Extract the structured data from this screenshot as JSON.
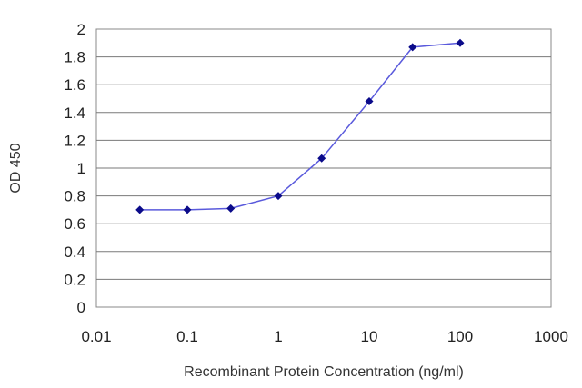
{
  "chart_data": {
    "type": "line",
    "title": "",
    "xlabel": "Recombinant Protein Concentration (ng/ml)",
    "ylabel": "OD 450",
    "x_scale": "log",
    "xlim": [
      0.01,
      1000
    ],
    "ylim": [
      0,
      2
    ],
    "x_ticks": [
      0.01,
      0.1,
      1,
      10,
      100,
      1000
    ],
    "x_tick_labels": [
      "0.01",
      "0.1",
      "1",
      "10",
      "100",
      "1000"
    ],
    "y_ticks": [
      0,
      0.2,
      0.4,
      0.6,
      0.8,
      1,
      1.2,
      1.4,
      1.6,
      1.8,
      2
    ],
    "y_tick_labels": [
      "0",
      "0.2",
      "0.4",
      "0.6",
      "0.8",
      "1",
      "1.2",
      "1.4",
      "1.6",
      "1.8",
      "2"
    ],
    "grid": "horizontal",
    "legend": "none",
    "series": [
      {
        "x": [
          0.03,
          0.1,
          0.3,
          1,
          3,
          10,
          30,
          100
        ],
        "y": [
          0.7,
          0.7,
          0.71,
          0.8,
          1.07,
          1.48,
          1.87,
          1.9
        ],
        "color": "#0b0b8a",
        "line_color": "#5a5adc"
      }
    ]
  }
}
